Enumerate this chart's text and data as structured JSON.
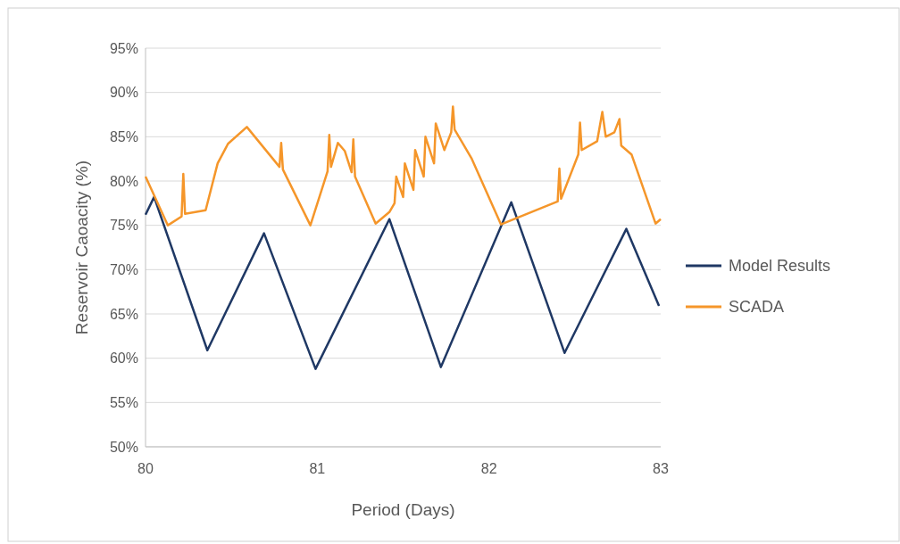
{
  "chart_data": {
    "type": "line",
    "xlabel": "Period (Days)",
    "ylabel": "Reservoir Caoacity (%)",
    "xlim": [
      80,
      83
    ],
    "xticks": [
      80,
      81,
      82,
      83
    ],
    "ylim": [
      50,
      95
    ],
    "yticks": [
      {
        "value": 50,
        "label": "50%"
      },
      {
        "value": 55,
        "label": "55%"
      },
      {
        "value": 60,
        "label": "60%"
      },
      {
        "value": 65,
        "label": "65%"
      },
      {
        "value": 70,
        "label": "70%"
      },
      {
        "value": 75,
        "label": "75%"
      },
      {
        "value": 80,
        "label": "80%"
      },
      {
        "value": 85,
        "label": "85%"
      },
      {
        "value": 90,
        "label": "90%"
      },
      {
        "value": 95,
        "label": "95%"
      }
    ],
    "grid": "y",
    "legend": "right",
    "line_style": "solid",
    "series": [
      {
        "name": "Model Results",
        "color": "#1f3864",
        "x": [
          80.0,
          80.05,
          80.36,
          80.69,
          80.99,
          81.42,
          81.72,
          82.13,
          82.44,
          82.8,
          82.99
        ],
        "values": [
          76.2,
          78.2,
          60.9,
          74.1,
          58.8,
          75.7,
          59.0,
          77.6,
          60.6,
          74.6,
          65.9
        ]
      },
      {
        "name": "SCADA",
        "color": "#f5962a",
        "x": [
          80.0,
          80.13,
          80.21,
          80.22,
          80.23,
          80.35,
          80.42,
          80.48,
          80.59,
          80.78,
          80.79,
          80.8,
          80.96,
          81.06,
          81.07,
          81.08,
          81.12,
          81.16,
          81.2,
          81.21,
          81.22,
          81.34,
          81.42,
          81.45,
          81.46,
          81.5,
          81.51,
          81.56,
          81.57,
          81.62,
          81.63,
          81.68,
          81.69,
          81.74,
          81.78,
          81.79,
          81.8,
          81.84,
          81.9,
          82.07,
          82.31,
          82.4,
          82.41,
          82.42,
          82.52,
          82.53,
          82.54,
          82.63,
          82.66,
          82.68,
          82.73,
          82.76,
          82.77,
          82.83,
          82.97,
          83.0
        ],
        "values": [
          80.5,
          75.0,
          76.0,
          80.8,
          76.3,
          76.7,
          82.0,
          84.2,
          86.1,
          81.6,
          84.3,
          81.3,
          75.0,
          81.1,
          85.2,
          81.6,
          84.3,
          83.4,
          81.0,
          84.7,
          80.5,
          75.2,
          76.5,
          77.5,
          80.5,
          78.2,
          82.0,
          79.0,
          83.5,
          80.5,
          85.0,
          82.0,
          86.5,
          83.5,
          85.5,
          88.4,
          85.8,
          84.5,
          82.5,
          75.1,
          77.0,
          77.7,
          81.4,
          78.0,
          83.0,
          86.6,
          83.5,
          84.5,
          87.8,
          85.0,
          85.5,
          87.0,
          84.0,
          83.0,
          75.2,
          75.7
        ]
      }
    ]
  }
}
